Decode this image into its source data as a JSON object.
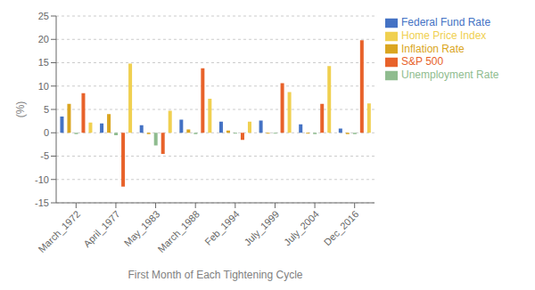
{
  "chart_data": {
    "type": "bar",
    "xlabel": "First Month of Each Tightening Cycle",
    "ylabel": "(%)",
    "categories": [
      "March_1972",
      "April_1977",
      "May_1983",
      "March_1988",
      "Feb_1994",
      "July_1999",
      "July_2004",
      "Dec_2016"
    ],
    "series": [
      {
        "name": "Federal Fund Rate",
        "color": "#4472c4",
        "values": [
          3.5,
          2.0,
          1.6,
          2.8,
          2.4,
          2.6,
          1.8,
          0.9
        ]
      },
      {
        "name": "Inflation Rate",
        "color": "#daa520",
        "values": [
          6.2,
          4.0,
          -0.3,
          0.7,
          0.5,
          -0.2,
          -0.2,
          -0.3
        ]
      },
      {
        "name": "Unemployment Rate",
        "color": "#8fbc8f",
        "values": [
          -0.3,
          -0.5,
          -2.7,
          -0.3,
          -0.2,
          -0.2,
          -0.3,
          -0.3
        ]
      },
      {
        "name": "S&P 500",
        "color": "#e8622a",
        "values": [
          8.5,
          -11.5,
          -4.5,
          13.8,
          -1.5,
          10.6,
          6.2,
          19.8
        ]
      },
      {
        "name": "Home Price Index",
        "color": "#f0d050",
        "values": [
          2.2,
          14.8,
          4.7,
          7.3,
          2.4,
          8.7,
          14.3,
          6.3
        ]
      }
    ],
    "ylim": [
      -15,
      25
    ],
    "yticks": [
      -15,
      -10,
      -5,
      0,
      5,
      10,
      15,
      20,
      25
    ],
    "grid": true,
    "legend": "right"
  }
}
